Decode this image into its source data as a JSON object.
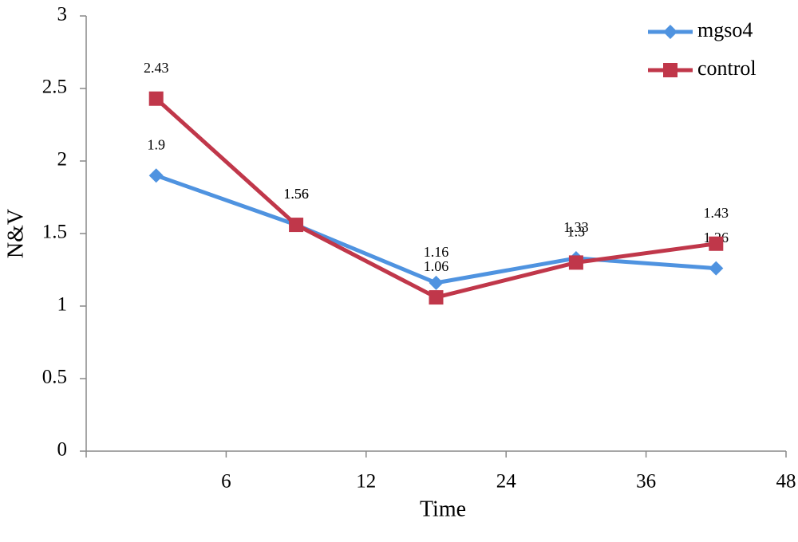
{
  "chart_data": {
    "type": "line",
    "x_label": "Time",
    "y_label": "N&V",
    "categories": [
      "6",
      "12",
      "24",
      "36",
      "48"
    ],
    "series": [
      {
        "name": "mgso4",
        "color": "#4f93e0",
        "marker": "diamond",
        "values": [
          1.9,
          1.56,
          1.16,
          1.33,
          1.26
        ]
      },
      {
        "name": "control",
        "color": "#c0374a",
        "marker": "square",
        "values": [
          2.43,
          1.56,
          1.06,
          1.3,
          1.43
        ]
      }
    ],
    "ylim": [
      0,
      3
    ],
    "yticks": [
      0,
      0.5,
      1,
      1.5,
      2,
      2.5,
      3
    ],
    "grid": false,
    "legend": "upper right"
  }
}
